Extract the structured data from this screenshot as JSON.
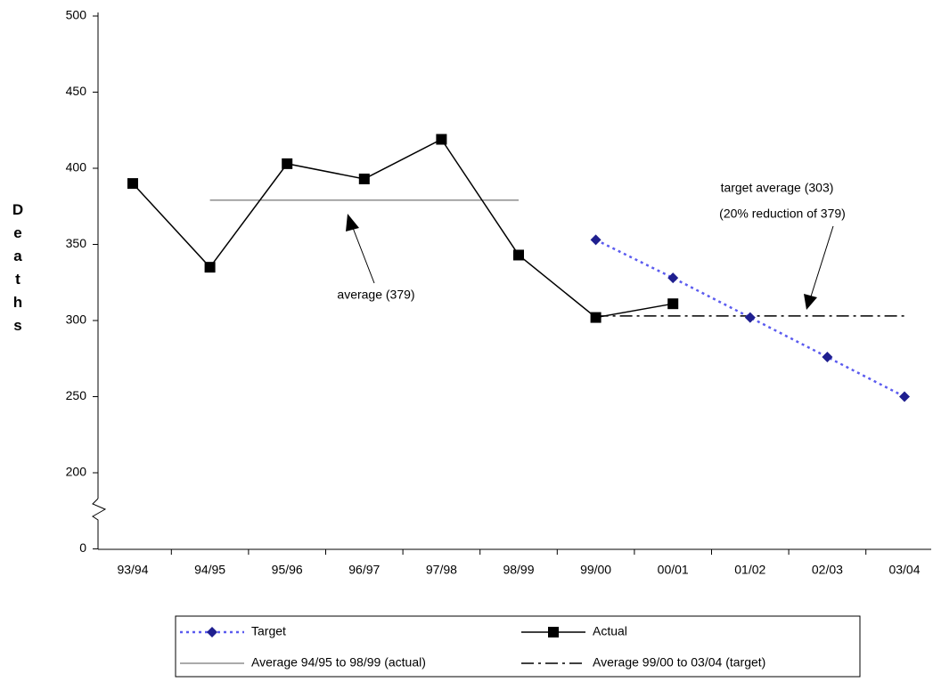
{
  "chart_data": {
    "type": "line",
    "y_label": "Deaths",
    "categories": [
      "93/94",
      "94/95",
      "95/96",
      "96/97",
      "97/98",
      "98/99",
      "99/00",
      "00/01",
      "01/02",
      "02/03",
      "03/04"
    ],
    "series": [
      {
        "name": "Target",
        "color": "#1f1f8f",
        "line_color": "#5b5bef",
        "line_style": "dotted",
        "marker": "diamond",
        "values": [
          null,
          null,
          null,
          null,
          null,
          null,
          353,
          328,
          302,
          276,
          250
        ]
      },
      {
        "name": "Actual",
        "color": "#000000",
        "line_color": "#000000",
        "line_style": "solid",
        "marker": "square",
        "values": [
          390,
          335,
          403,
          393,
          419,
          343,
          302,
          311,
          null,
          null,
          null
        ]
      }
    ],
    "reference_lines": [
      {
        "name": "Average 94/95 to 98/99 (actual)",
        "value": 379,
        "span": [
          "94/95",
          "98/99"
        ],
        "style": "solid",
        "color": "#555555"
      },
      {
        "name": "Average 99/00 to 03/04 (target)",
        "value": 303,
        "span": [
          "99/00",
          "03/04"
        ],
        "style": "dashdot",
        "color": "#000000"
      }
    ],
    "annotations": [
      "average (379)",
      "target average (303)",
      "(20% reduction of 379)"
    ],
    "ylim": [
      0,
      500
    ],
    "yticks": [
      0,
      200,
      250,
      300,
      350,
      400,
      450,
      500
    ],
    "y_axis_break": true,
    "legend": "bottom"
  }
}
